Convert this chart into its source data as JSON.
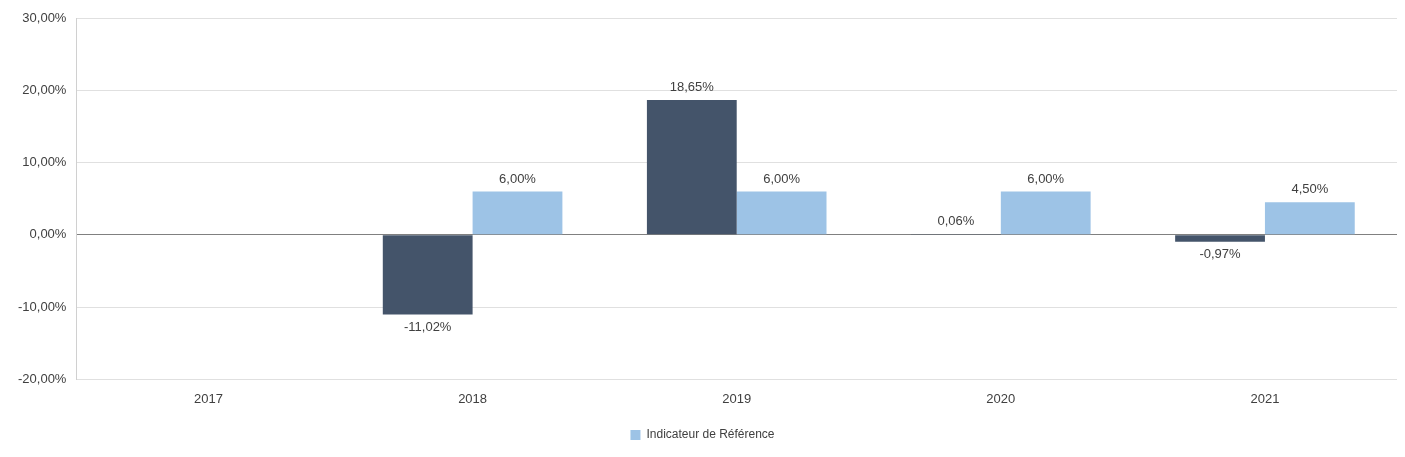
{
  "chart_data": {
    "type": "bar",
    "categories": [
      "2017",
      "2018",
      "2019",
      "2020",
      "2021"
    ],
    "series": [
      {
        "color": "#44546a",
        "values": [
          null,
          -11.02,
          18.65,
          0.06,
          -0.97
        ],
        "value_labels": [
          null,
          "-11,02%",
          "18,65%",
          "0,06%",
          "-0,97%"
        ]
      },
      {
        "name": "Indicateur de Référence",
        "color": "#9dc3e6",
        "values": [
          null,
          6.0,
          6.0,
          6.0,
          4.5
        ],
        "value_labels": [
          null,
          "6,00%",
          "6,00%",
          "6,00%",
          "4,50%"
        ]
      }
    ],
    "ylim": [
      -20,
      30
    ],
    "yticks": [
      {
        "value": -20,
        "label": "-20,00%"
      },
      {
        "value": -10,
        "label": "-10,00%"
      },
      {
        "value": 0,
        "label": "0,00%"
      },
      {
        "value": 10,
        "label": "10,00%"
      },
      {
        "value": 20,
        "label": "20,00%"
      },
      {
        "value": 30,
        "label": "30,00%"
      }
    ],
    "grid": "y",
    "legend": "bottom"
  }
}
